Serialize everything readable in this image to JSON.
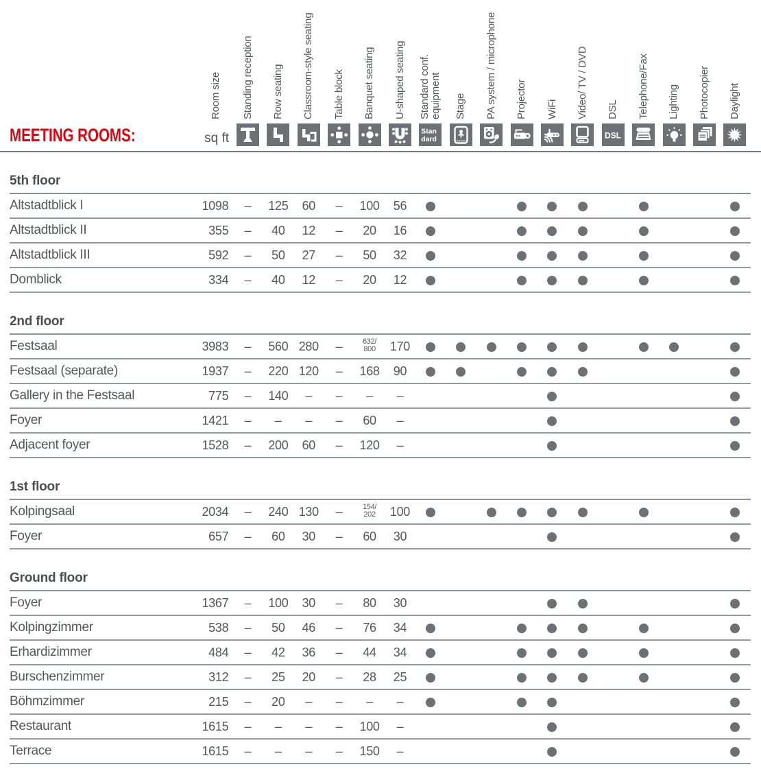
{
  "title": "MEETING ROOMS:",
  "unit_label": "sq ft",
  "colors": {
    "accent_red": "#e3000f",
    "icon_gray": "#6c7176",
    "text_gray": "#54575a",
    "line_gray": "#96999c"
  },
  "columns": {
    "capacity": [
      {
        "key": "sqft",
        "label": "Room size",
        "icon": null
      },
      {
        "key": "standing",
        "label": "Standing reception",
        "icon": "standing-reception-icon"
      },
      {
        "key": "row",
        "label": "Row seating",
        "icon": "row-seating-icon"
      },
      {
        "key": "classroom",
        "label": "Classroom-style seating",
        "icon": "classroom-seating-icon"
      },
      {
        "key": "tableblock",
        "label": "Table block",
        "icon": "table-block-icon"
      },
      {
        "key": "banquet",
        "label": "Banquet seating",
        "icon": "banquet-seating-icon"
      },
      {
        "key": "ushaped",
        "label": "U-shaped seating",
        "icon": "u-shaped-seating-icon"
      }
    ],
    "equipment": [
      {
        "key": "standard",
        "label": "Standard conf.\nequipment",
        "icon": "standard-equipment-icon"
      },
      {
        "key": "stage",
        "label": "Stage",
        "icon": "stage-icon"
      },
      {
        "key": "pa",
        "label": "PA system / microphone",
        "icon": "pa-system-microphone-icon"
      },
      {
        "key": "projector",
        "label": "Projector",
        "icon": "projector-icon"
      },
      {
        "key": "wifi",
        "label": "WiFi",
        "icon": "wifi-icon"
      },
      {
        "key": "video",
        "label": "Video/ TV / DVD",
        "icon": "video-tv-dvd-icon"
      },
      {
        "key": "dsl",
        "label": "DSL",
        "icon": "dsl-icon"
      },
      {
        "key": "telfax",
        "label": "Telephone/Fax",
        "icon": "telephone-fax-icon"
      },
      {
        "key": "lighting",
        "label": "Lighting",
        "icon": "lighting-icon"
      },
      {
        "key": "photocopier",
        "label": "Photocopier",
        "icon": "photocopier-icon"
      },
      {
        "key": "daylight",
        "label": "Daylight",
        "icon": "daylight-icon"
      }
    ]
  },
  "sections": [
    {
      "floor": "5th floor",
      "rooms": [
        {
          "name": "Altstadtblick I",
          "values": [
            "1098",
            "–",
            "125",
            "60",
            "–",
            "100",
            "56"
          ],
          "equipment": [
            1,
            0,
            0,
            1,
            1,
            1,
            0,
            1,
            0,
            0,
            1
          ]
        },
        {
          "name": "Altstadtblick II",
          "values": [
            "355",
            "–",
            "40",
            "12",
            "–",
            "20",
            "16"
          ],
          "equipment": [
            1,
            0,
            0,
            1,
            1,
            1,
            0,
            1,
            0,
            0,
            1
          ]
        },
        {
          "name": "Altstadtblick III",
          "values": [
            "592",
            "–",
            "50",
            "27",
            "–",
            "50",
            "32"
          ],
          "equipment": [
            1,
            0,
            0,
            1,
            1,
            1,
            0,
            1,
            0,
            0,
            1
          ]
        },
        {
          "name": "Domblick",
          "values": [
            "334",
            "–",
            "40",
            "12",
            "–",
            "20",
            "12"
          ],
          "equipment": [
            1,
            0,
            0,
            1,
            1,
            1,
            0,
            1,
            0,
            0,
            1
          ]
        }
      ]
    },
    {
      "floor": "2nd floor",
      "rooms": [
        {
          "name": "Festsaal",
          "values": [
            "3983",
            "–",
            "560",
            "280",
            "–",
            "632/|800",
            "170"
          ],
          "equipment": [
            1,
            1,
            1,
            1,
            1,
            1,
            0,
            1,
            1,
            0,
            1
          ]
        },
        {
          "name": "Festsaal (separate)",
          "values": [
            "1937",
            "–",
            "220",
            "120",
            "–",
            "168",
            "90"
          ],
          "equipment": [
            1,
            1,
            0,
            1,
            1,
            1,
            0,
            0,
            0,
            0,
            1
          ]
        },
        {
          "name": "Gallery in the Festsaal",
          "values": [
            "775",
            "–",
            "140",
            "–",
            "–",
            "–",
            "–"
          ],
          "equipment": [
            0,
            0,
            0,
            0,
            1,
            0,
            0,
            0,
            0,
            0,
            1
          ]
        },
        {
          "name": "Foyer",
          "values": [
            "1421",
            "–",
            "–",
            "–",
            "–",
            "60",
            "–"
          ],
          "equipment": [
            0,
            0,
            0,
            0,
            1,
            0,
            0,
            0,
            0,
            0,
            1
          ]
        },
        {
          "name": "Adjacent foyer",
          "values": [
            "1528",
            "–",
            "200",
            "60",
            "–",
            "120",
            "–"
          ],
          "equipment": [
            0,
            0,
            0,
            0,
            1,
            0,
            0,
            0,
            0,
            0,
            1
          ]
        }
      ]
    },
    {
      "floor": "1st floor",
      "rooms": [
        {
          "name": "Kolpingsaal",
          "values": [
            "2034",
            "–",
            "240",
            "130",
            "–",
            "154/|202",
            "100"
          ],
          "equipment": [
            1,
            0,
            1,
            1,
            1,
            1,
            0,
            1,
            0,
            0,
            1
          ]
        },
        {
          "name": "Foyer",
          "values": [
            "657",
            "–",
            "60",
            "30",
            "–",
            "60",
            "30"
          ],
          "equipment": [
            0,
            0,
            0,
            0,
            1,
            0,
            0,
            0,
            0,
            0,
            1
          ]
        }
      ]
    },
    {
      "floor": "Ground floor",
      "rooms": [
        {
          "name": "Foyer",
          "values": [
            "1367",
            "–",
            "100",
            "30",
            "–",
            "80",
            "30"
          ],
          "equipment": [
            0,
            0,
            0,
            0,
            1,
            1,
            0,
            0,
            0,
            0,
            1
          ]
        },
        {
          "name": "Kolpingzimmer",
          "values": [
            "538",
            "–",
            "50",
            "46",
            "–",
            "76",
            "34"
          ],
          "equipment": [
            1,
            0,
            0,
            1,
            1,
            1,
            0,
            1,
            0,
            0,
            1
          ]
        },
        {
          "name": "Erhardizimmer",
          "values": [
            "484",
            "–",
            "42",
            "36",
            "–",
            "44",
            "34"
          ],
          "equipment": [
            1,
            0,
            0,
            1,
            1,
            1,
            0,
            1,
            0,
            0,
            1
          ]
        },
        {
          "name": "Burschenzimmer",
          "values": [
            "312",
            "–",
            "25",
            "20",
            "–",
            "28",
            "25"
          ],
          "equipment": [
            1,
            0,
            0,
            1,
            1,
            1,
            0,
            1,
            0,
            0,
            1
          ]
        },
        {
          "name": "Böhmzimmer",
          "values": [
            "215",
            "–",
            "20",
            "–",
            "–",
            "–",
            "–"
          ],
          "equipment": [
            1,
            0,
            0,
            1,
            1,
            0,
            0,
            0,
            0,
            0,
            1
          ]
        },
        {
          "name": "Restaurant",
          "values": [
            "1615",
            "–",
            "–",
            "–",
            "–",
            "100",
            "–"
          ],
          "equipment": [
            0,
            0,
            0,
            0,
            1,
            0,
            0,
            0,
            0,
            0,
            1
          ]
        },
        {
          "name": "Terrace",
          "values": [
            "1615",
            "–",
            "–",
            "–",
            "–",
            "150",
            "–"
          ],
          "equipment": [
            0,
            0,
            0,
            0,
            1,
            0,
            0,
            0,
            0,
            0,
            1
          ]
        }
      ]
    }
  ]
}
